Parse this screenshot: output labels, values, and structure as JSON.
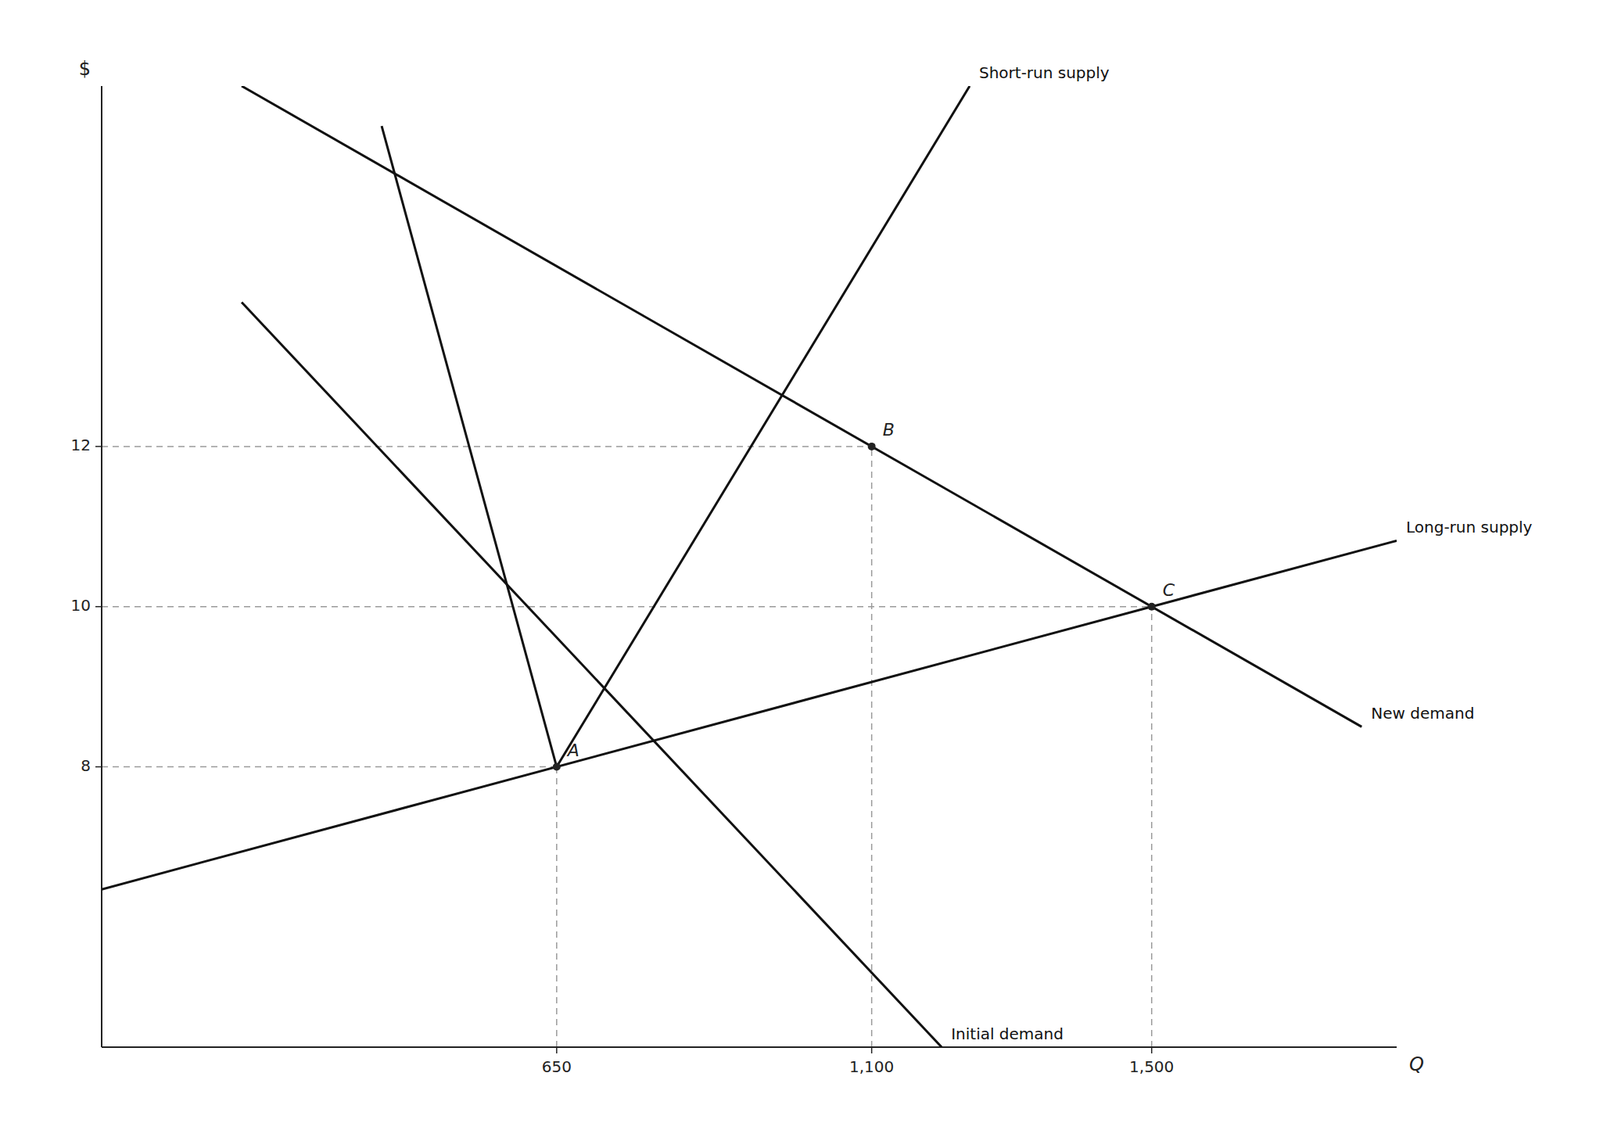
{
  "chart_data": {
    "type": "line",
    "xlabel": "Q",
    "ylabel": "$",
    "xlim": [
      0,
      1850
    ],
    "ylim": [
      4.5,
      16.5
    ],
    "xticks": [
      650,
      {
        "value": 1100,
        "label": "1,100"
      },
      {
        "value": 1500,
        "label": "1,500"
      }
    ],
    "yticks": [
      8,
      10,
      12
    ],
    "grid": false,
    "series": [
      {
        "name": "Initial demand",
        "color": "#111111",
        "x": [
          200,
          1200
        ],
        "values": [
          13.8,
          4.5
        ]
      },
      {
        "name": "New demand",
        "color": "#111111",
        "x": [
          200,
          1800
        ],
        "values": [
          16.5,
          8.5
        ]
      },
      {
        "name": "Short-run supply",
        "color": "#111111",
        "x": [
          400,
          650,
          1240
        ],
        "values": [
          16.0,
          8,
          16.5
        ]
      },
      {
        "name": "Long-run supply",
        "color": "#111111",
        "x": [
          0,
          1850
        ],
        "values": [
          6.470588235294118,
          10.823529411764707
        ]
      }
    ],
    "annotations": [
      {
        "text": "A",
        "x": 650,
        "y": 8
      },
      {
        "text": "B",
        "x": 1100,
        "y": 12
      },
      {
        "text": "C",
        "x": 1500,
        "y": 10
      }
    ]
  }
}
